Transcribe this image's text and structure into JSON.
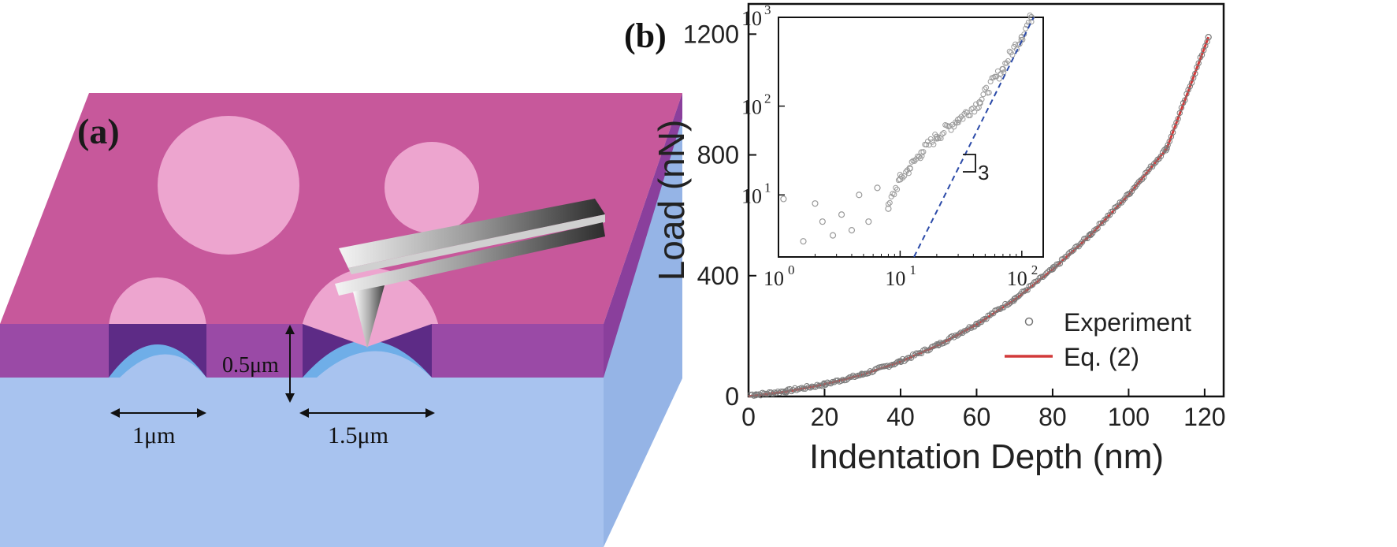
{
  "panel_a": {
    "label": "(a)",
    "dim_thickness": "0.5μm",
    "dim_small_width": "1μm",
    "dim_large_width": "1.5μm",
    "colors": {
      "top_surface": "#c7589b",
      "film_side": "#9a4aa6",
      "substrate": "#a8c3ef",
      "disc": "#eda5cf",
      "dome": "#6faee8"
    }
  },
  "panel_b": {
    "label": "(b)",
    "legend": {
      "experiment": "Experiment",
      "fit": "Eq. (2)"
    },
    "slope_label": "3"
  },
  "chart_data": [
    {
      "type": "scatter",
      "xlabel": "Indentation Depth (nm)",
      "ylabel": "Load (nN)",
      "xlim": [
        0,
        125
      ],
      "ylim": [
        0,
        1300
      ],
      "xticks": [
        0,
        20,
        40,
        60,
        80,
        100,
        120
      ],
      "xtick_labels": [
        "0",
        "20",
        "40",
        "60",
        "80",
        "100",
        "120"
      ],
      "yticks": [
        0,
        400,
        800,
        1200
      ],
      "ytick_labels": [
        "0",
        "400",
        "800",
        "1200"
      ],
      "legend_position": "lower-right",
      "series": [
        {
          "name": "Experiment",
          "marker": "open-circle",
          "color": "#7a7a7a",
          "x": [
            2,
            10,
            20,
            30,
            40,
            50,
            60,
            70,
            80,
            90,
            100,
            110,
            121
          ],
          "y": [
            6,
            18,
            40,
            73,
            116,
            172,
            240,
            323,
            422,
            537,
            670,
            822,
            1190
          ]
        },
        {
          "name": "Eq. (2)",
          "type": "line",
          "color": "#d23a3a",
          "x": [
            0,
            10,
            20,
            30,
            40,
            50,
            60,
            70,
            80,
            90,
            100,
            110,
            121
          ],
          "y": [
            0,
            16,
            40,
            72,
            115,
            170,
            238,
            320,
            420,
            535,
            668,
            820,
            1190
          ]
        }
      ]
    },
    {
      "type": "scatter",
      "scale": "log-log",
      "xlim": [
        1,
        150
      ],
      "ylim": [
        2,
        1000
      ],
      "xtick_labels": [
        "10^0",
        "10^1",
        "10^2"
      ],
      "ytick_labels": [
        "10^1",
        "10^2",
        "10^3"
      ],
      "series": [
        {
          "marker": "open-circle",
          "color": "#9a9a9a",
          "x": [
            1.1,
            1.6,
            2,
            2.3,
            2.8,
            3.3,
            4,
            4.6,
            5.5,
            6.5,
            8,
            10,
            12,
            15,
            20,
            30,
            45,
            70,
            100,
            120
          ],
          "y": [
            9,
            3,
            8,
            5,
            3.5,
            6,
            4,
            10,
            5,
            12,
            7,
            15,
            20,
            30,
            45,
            70,
            110,
            260,
            600,
            1000
          ]
        },
        {
          "type": "line",
          "style": "dashed",
          "color": "#2b4aa8",
          "x": [
            13,
            125
          ],
          "y": [
            2,
            1000
          ]
        }
      ]
    }
  ]
}
